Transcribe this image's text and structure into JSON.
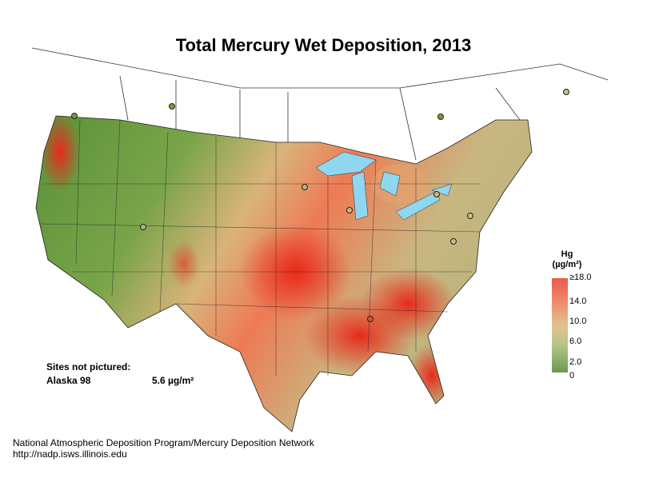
{
  "title": "Total Mercury Wet Deposition, 2013",
  "legend": {
    "title_line1": "Hg",
    "title_line2": "(µg/m²)",
    "ticks": [
      "≥18.0",
      "14.0",
      "10.0",
      "6.0",
      "2.0",
      "0"
    ],
    "colors": {
      "high": "#e95b4e",
      "mid": "#e1c28f",
      "low": "#6a9a52"
    }
  },
  "sites_not_pictured": {
    "heading": "Sites not pictured:",
    "site": "Alaska 98",
    "value": "5.6 µg/m²"
  },
  "credit": {
    "line1": "National Atmospheric Deposition Program/Mercury Deposition Network",
    "line2": "http://nadp.isws.illinois.edu"
  }
}
